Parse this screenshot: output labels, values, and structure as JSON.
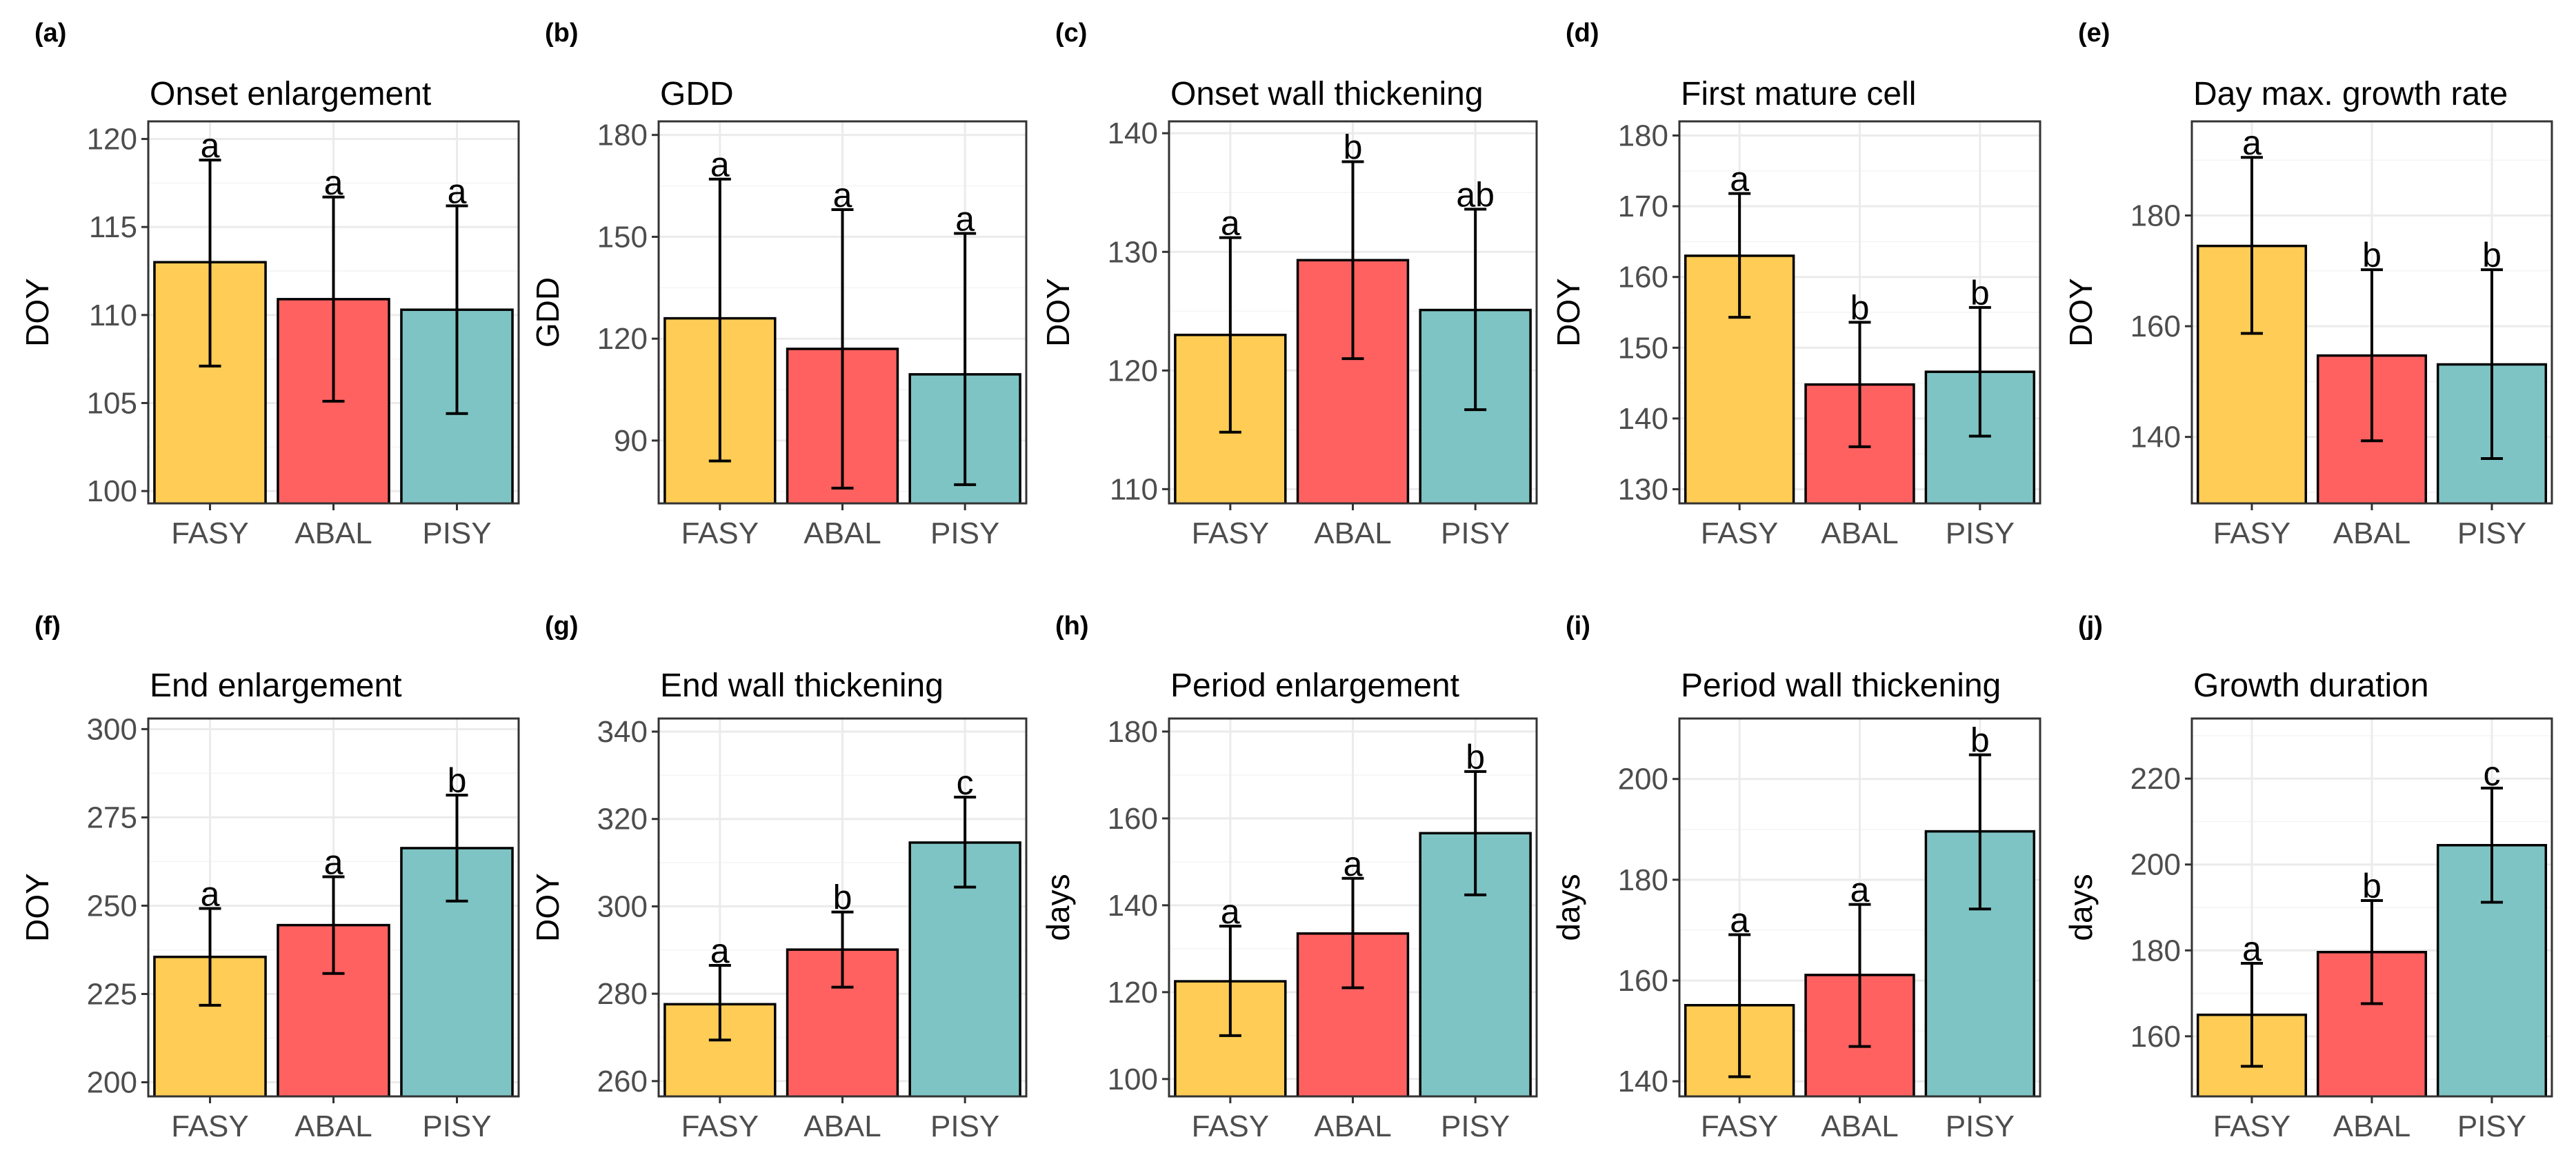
{
  "colors": {
    "FASY": "#FFCC55",
    "ABAL": "#FF6161",
    "PISY": "#7FC4C4"
  },
  "chart_data": [
    {
      "letter": "(a)",
      "type": "bar",
      "title": "Onset enlargement",
      "ylabel": "DOY",
      "categories": [
        "FASY",
        "ABAL",
        "PISY"
      ],
      "values": [
        113,
        110.9,
        110.3
      ],
      "error_low": [
        107.1,
        105.1,
        104.4
      ],
      "error_high": [
        118.8,
        116.7,
        116.2
      ],
      "sig": [
        "a",
        "a",
        "a"
      ],
      "ylim": [
        99.3,
        121
      ],
      "yticks": [
        100,
        105,
        110,
        115,
        120
      ],
      "minor": [
        102.5,
        107.5,
        112.5,
        117.5
      ]
    },
    {
      "letter": "(b)",
      "type": "bar",
      "title": "GDD",
      "ylabel": "GDD",
      "categories": [
        "FASY",
        "ABAL",
        "PISY"
      ],
      "values": [
        126,
        117,
        109.5
      ],
      "error_low": [
        84,
        76,
        77
      ],
      "error_high": [
        167,
        158,
        151
      ],
      "sig": [
        "a",
        "a",
        "a"
      ],
      "ylim": [
        71.5,
        184
      ],
      "yticks": [
        90,
        120,
        150,
        180
      ],
      "minor": [
        75,
        105,
        135,
        165
      ]
    },
    {
      "letter": "(c)",
      "type": "bar",
      "title": "Onset wall thickening",
      "ylabel": "DOY",
      "categories": [
        "FASY",
        "ABAL",
        "PISY"
      ],
      "values": [
        123,
        129.3,
        125.1
      ],
      "error_low": [
        114.8,
        121,
        116.7
      ],
      "error_high": [
        131.2,
        137.6,
        133.6
      ],
      "sig": [
        "a",
        "b",
        "ab"
      ],
      "ylim": [
        108.8,
        141
      ],
      "yticks": [
        110,
        120,
        130,
        140
      ],
      "minor": [
        115,
        125,
        135
      ]
    },
    {
      "letter": "(d)",
      "type": "bar",
      "title": "First mature cell",
      "ylabel": "DOY",
      "categories": [
        "FASY",
        "ABAL",
        "PISY"
      ],
      "values": [
        163,
        144.8,
        146.6
      ],
      "error_low": [
        154.3,
        136,
        137.5
      ],
      "error_high": [
        171.8,
        153.6,
        155.7
      ],
      "sig": [
        "a",
        "b",
        "b"
      ],
      "ylim": [
        128,
        182
      ],
      "yticks": [
        130,
        140,
        150,
        160,
        170,
        180
      ],
      "minor": [
        135,
        145,
        155,
        165,
        175
      ]
    },
    {
      "letter": "(e)",
      "type": "bar",
      "title": "Day max. growth rate",
      "ylabel": "DOY",
      "categories": [
        "FASY",
        "ABAL",
        "PISY"
      ],
      "values": [
        174.5,
        154.7,
        153.1
      ],
      "error_low": [
        158.7,
        139.3,
        136.1
      ],
      "error_high": [
        190.5,
        170.2,
        170.2
      ],
      "sig": [
        "a",
        "b",
        "b"
      ],
      "ylim": [
        128,
        197
      ],
      "yticks": [
        140,
        160,
        180
      ],
      "minor": [
        130,
        150,
        170,
        190
      ]
    },
    {
      "letter": "(f)",
      "type": "bar",
      "title": "End enlargement",
      "ylabel": "DOY",
      "categories": [
        "FASY",
        "ABAL",
        "PISY"
      ],
      "values": [
        235.5,
        244.5,
        266.3
      ],
      "error_low": [
        221.8,
        230.8,
        251.3
      ],
      "error_high": [
        249.2,
        258.2,
        281.3
      ],
      "sig": [
        "a",
        "a",
        "b"
      ],
      "ylim": [
        196,
        303
      ],
      "yticks": [
        200,
        225,
        250,
        275,
        300
      ],
      "minor": [
        212.5,
        237.5,
        262.5,
        287.5
      ]
    },
    {
      "letter": "(g)",
      "type": "bar",
      "title": "End wall thickening",
      "ylabel": "DOY",
      "categories": [
        "FASY",
        "ABAL",
        "PISY"
      ],
      "values": [
        277.6,
        290.1,
        314.6
      ],
      "error_low": [
        269.4,
        281.5,
        304.4
      ],
      "error_high": [
        286.5,
        298.7,
        325
      ],
      "sig": [
        "a",
        "b",
        "c"
      ],
      "ylim": [
        256.5,
        343
      ],
      "yticks": [
        260,
        280,
        300,
        320,
        340
      ],
      "minor": [
        270,
        290,
        310,
        330
      ]
    },
    {
      "letter": "(h)",
      "type": "bar",
      "title": "Period enlargement",
      "ylabel": "days",
      "categories": [
        "FASY",
        "ABAL",
        "PISY"
      ],
      "values": [
        122.5,
        133.5,
        156.6
      ],
      "error_low": [
        110,
        121,
        142.4
      ],
      "error_high": [
        135.2,
        146.2,
        170.8
      ],
      "sig": [
        "a",
        "a",
        "b"
      ],
      "ylim": [
        96,
        183
      ],
      "yticks": [
        100,
        120,
        140,
        160,
        180
      ],
      "minor": [
        110,
        130,
        150,
        170
      ]
    },
    {
      "letter": "(i)",
      "type": "bar",
      "title": "Period wall thickening",
      "ylabel": "days",
      "categories": [
        "FASY",
        "ABAL",
        "PISY"
      ],
      "values": [
        155.1,
        161.1,
        189.6
      ],
      "error_low": [
        140.9,
        146.9,
        174.2
      ],
      "error_high": [
        169.1,
        175.1,
        204.8
      ],
      "sig": [
        "a",
        "a",
        "b"
      ],
      "ylim": [
        137,
        212
      ],
      "yticks": [
        140,
        160,
        180,
        200
      ],
      "minor": [
        150,
        170,
        190
      ]
    },
    {
      "letter": "(j)",
      "type": "bar",
      "title": "Growth duration",
      "ylabel": "days",
      "categories": [
        "FASY",
        "ABAL",
        "PISY"
      ],
      "values": [
        165,
        179.6,
        204.5
      ],
      "error_low": [
        153,
        167.6,
        191.2
      ],
      "error_high": [
        177,
        191.6,
        217.8
      ],
      "sig": [
        "a",
        "b",
        "c"
      ],
      "ylim": [
        146,
        234
      ],
      "yticks": [
        160,
        180,
        200,
        220
      ],
      "minor": [
        150,
        170,
        190,
        210,
        230
      ]
    }
  ]
}
